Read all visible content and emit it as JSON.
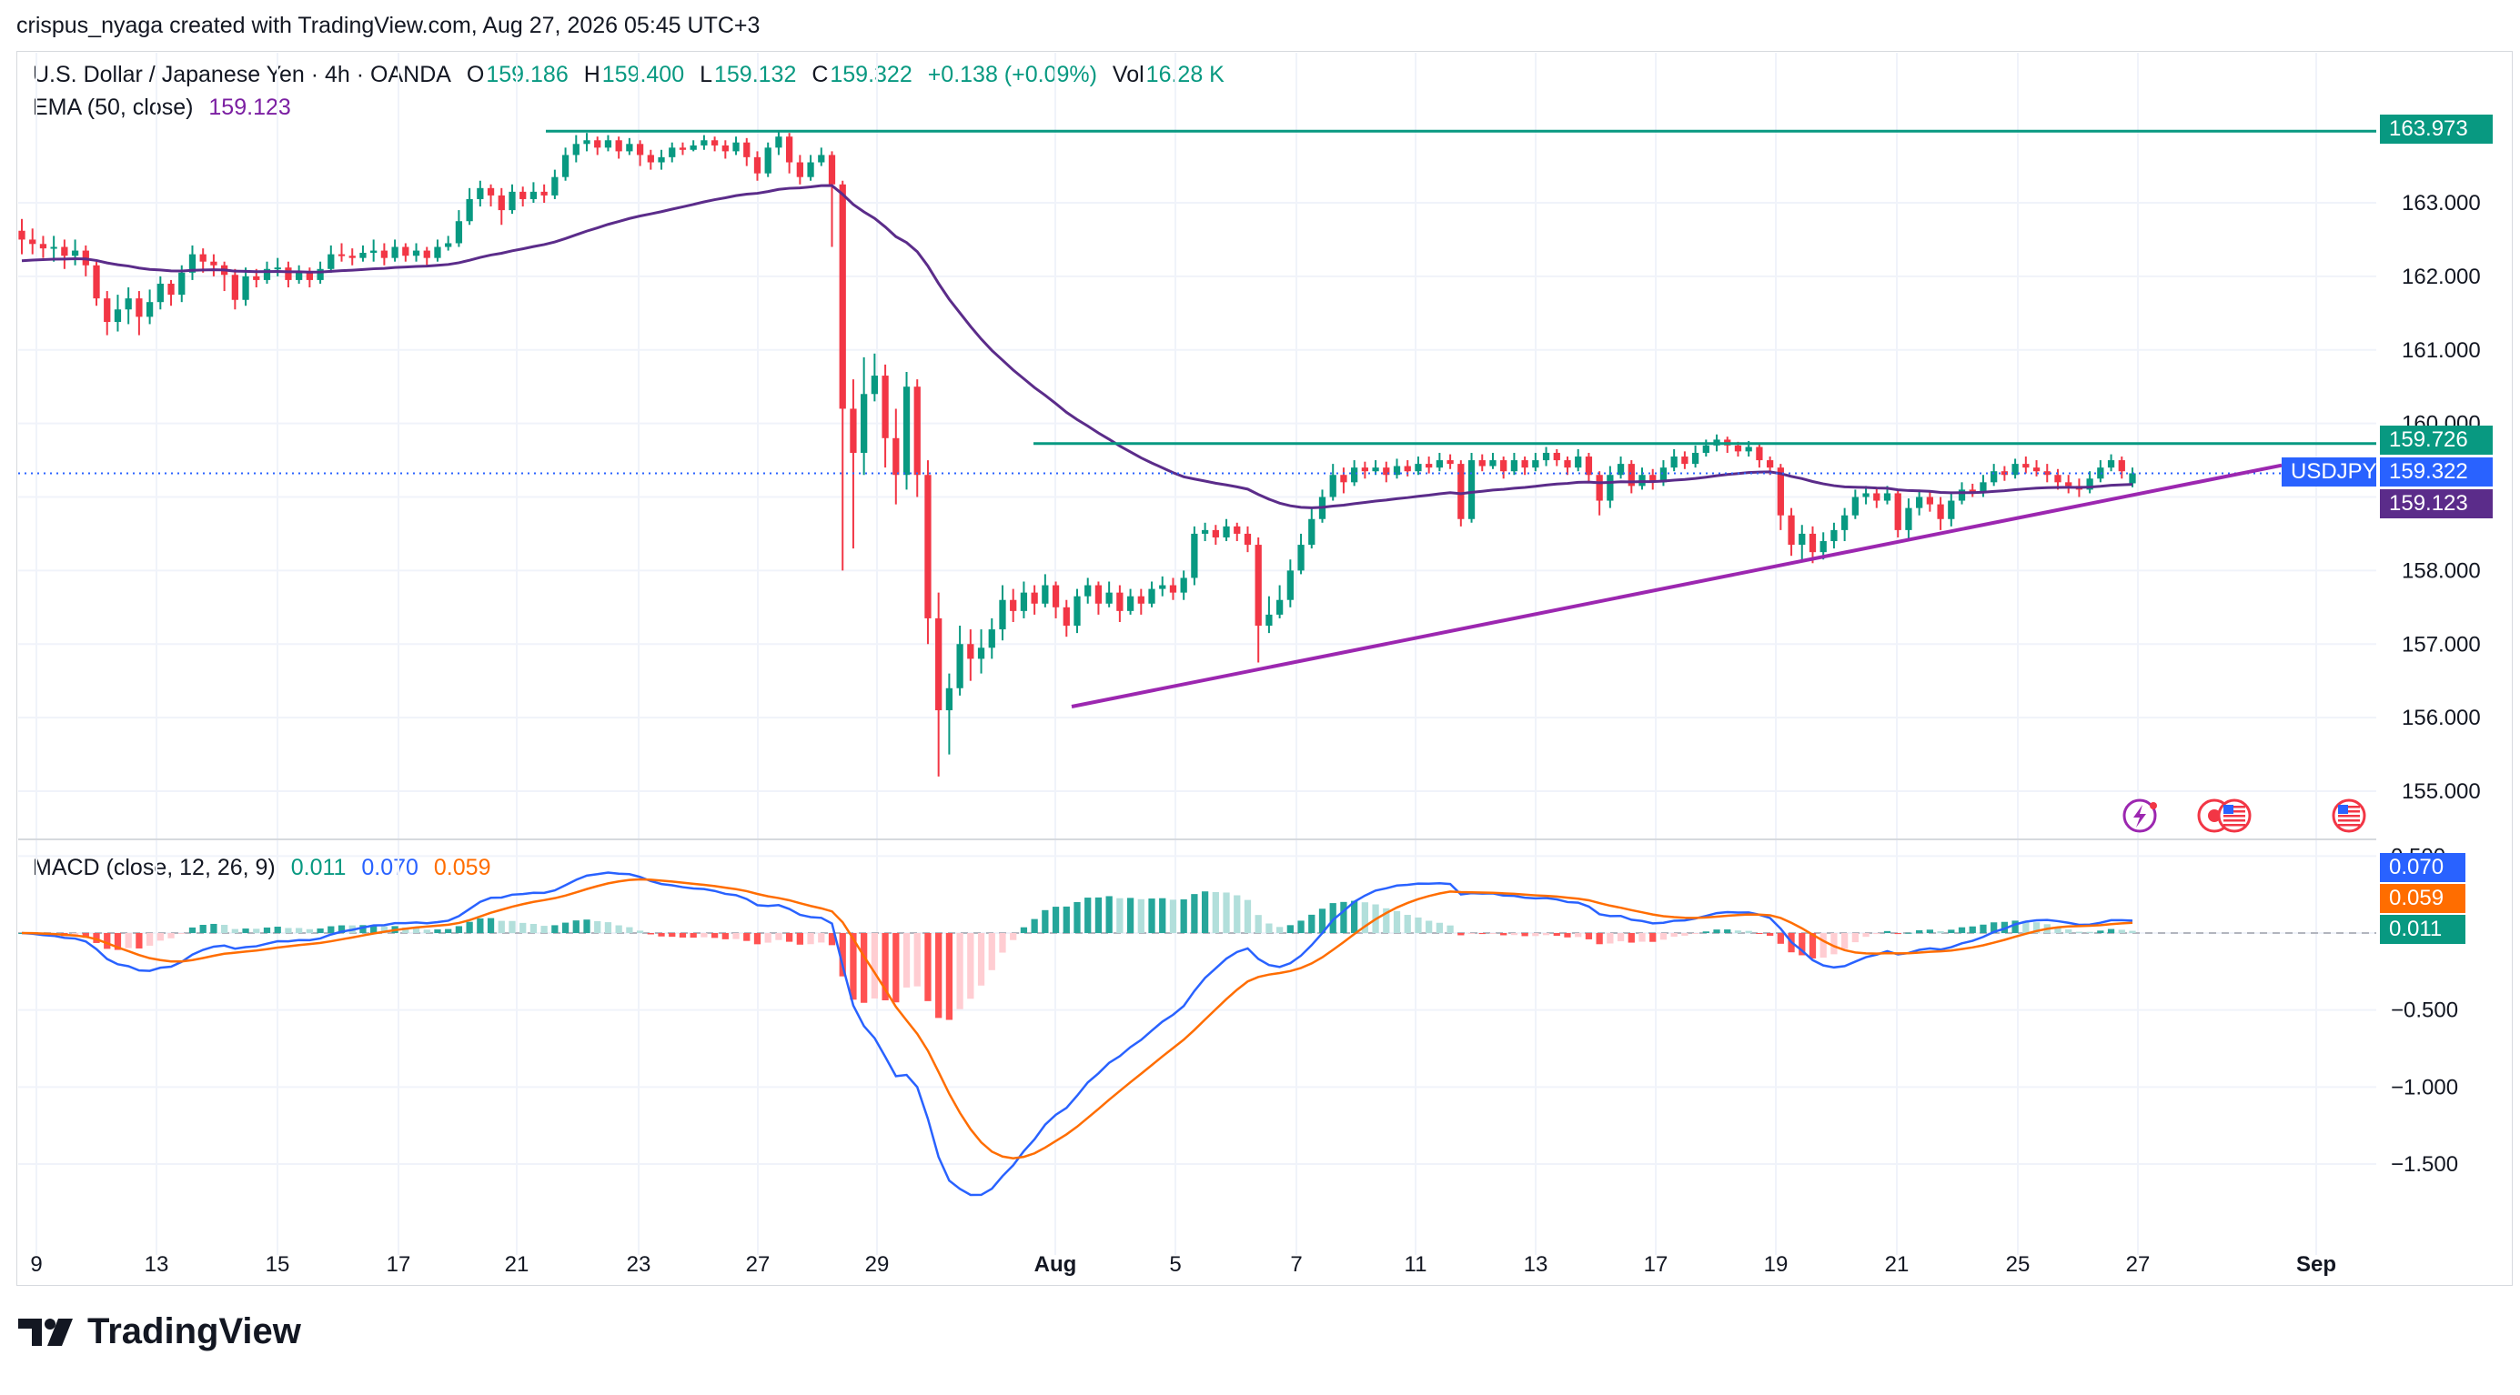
{
  "header": {
    "text": "crispus_nyaga created with TradingView.com, Aug 27, 2026 05:45 UTC+3"
  },
  "legend": {
    "symbol": "U.S. Dollar / Japanese Yen · 4h · OANDA",
    "open_label": "O",
    "open": "159.186",
    "high_label": "H",
    "high": "159.400",
    "low_label": "L",
    "low": "159.132",
    "close_label": "C",
    "close": "159.322",
    "change": "+0.138 (+0.09%)",
    "vol_label": "Vol",
    "vol": "16.28 K",
    "ema_label": "EMA (50, close)",
    "ema_value": "159.123"
  },
  "macd_legend": {
    "label": "MACD (close, 12, 26, 9)",
    "hist": "0.011",
    "macd": "0.070",
    "signal": "0.059"
  },
  "price_tags": {
    "resistance_top": "163.973",
    "resistance_mid": "159.726",
    "symbol_tag": "USDJPY",
    "last_price": "159.322",
    "ema": "159.123",
    "macd": "0.070",
    "signal": "0.059",
    "hist": "0.011"
  },
  "colors": {
    "up": "#089981",
    "down": "#f23645",
    "ema": "#5b2c8a",
    "trendline": "#9c27b0",
    "hline": "#089981",
    "macd": "#2962ff",
    "signal": "#ff6d00"
  },
  "icons": [
    "lightning-event-icon",
    "flag-event-icon",
    "us-flag-event-icon"
  ],
  "brand": {
    "name": "TradingView"
  },
  "chart_data": {
    "type": "candlestick",
    "title": "U.S. Dollar / Japanese Yen · 4h · OANDA",
    "price_axis": {
      "ticks": [
        "163.000",
        "162.000",
        "161.000",
        "160.000",
        "158.000",
        "157.000",
        "156.000",
        "155.000"
      ],
      "range": [
        154.6,
        164.8
      ]
    },
    "macd_axis": {
      "ticks": [
        "0.500",
        "−0.500",
        "−1.000",
        "−1.500"
      ],
      "range": [
        -1.75,
        0.62
      ]
    },
    "x_axis": {
      "ticks": [
        "9",
        "13",
        "15",
        "17",
        "21",
        "23",
        "27",
        "29",
        "Aug",
        "5",
        "7",
        "11",
        "13",
        "17",
        "19",
        "21",
        "25",
        "27",
        "Sep"
      ]
    },
    "horizontal_lines": [
      163.973,
      159.726
    ],
    "trendline": {
      "from": [
        "Aug 1",
        156.15
      ],
      "to": [
        "Aug 31",
        159.43
      ]
    },
    "last_price": 159.322,
    "ema_last": 159.123,
    "candles": [
      [
        162.62,
        162.5,
        162.78,
        162.3
      ],
      [
        162.5,
        162.44,
        162.65,
        162.3
      ],
      [
        162.44,
        162.38,
        162.55,
        162.25
      ],
      [
        162.38,
        162.4,
        162.55,
        162.2
      ],
      [
        162.4,
        162.28,
        162.5,
        162.1
      ],
      [
        162.28,
        162.35,
        162.5,
        162.15
      ],
      [
        162.35,
        162.15,
        162.42,
        162.0
      ],
      [
        162.15,
        161.7,
        162.2,
        161.6
      ],
      [
        161.7,
        161.38,
        161.8,
        161.2
      ],
      [
        161.38,
        161.55,
        161.75,
        161.25
      ],
      [
        161.55,
        161.7,
        161.85,
        161.35
      ],
      [
        161.7,
        161.45,
        161.8,
        161.2
      ],
      [
        161.45,
        161.65,
        161.82,
        161.35
      ],
      [
        161.65,
        161.9,
        162.0,
        161.55
      ],
      [
        161.9,
        161.75,
        161.95,
        161.6
      ],
      [
        161.75,
        162.05,
        162.15,
        161.65
      ],
      [
        162.05,
        162.3,
        162.42,
        161.95
      ],
      [
        162.3,
        162.2,
        162.38,
        162.05
      ],
      [
        162.2,
        162.15,
        162.3,
        162.0
      ],
      [
        162.15,
        162.02,
        162.2,
        161.8
      ],
      [
        162.02,
        161.68,
        162.1,
        161.55
      ],
      [
        161.68,
        162.0,
        162.12,
        161.6
      ],
      [
        162.0,
        161.95,
        162.1,
        161.85
      ],
      [
        161.95,
        162.1,
        162.2,
        161.9
      ],
      [
        162.1,
        162.12,
        162.25,
        162.0
      ],
      [
        162.12,
        161.95,
        162.2,
        161.85
      ],
      [
        161.95,
        162.05,
        162.15,
        161.9
      ],
      [
        162.05,
        161.95,
        162.12,
        161.85
      ],
      [
        161.95,
        162.1,
        162.2,
        161.9
      ],
      [
        162.1,
        162.3,
        162.42,
        162.05
      ],
      [
        162.3,
        162.28,
        162.45,
        162.2
      ],
      [
        162.28,
        162.25,
        162.38,
        162.15
      ],
      [
        162.25,
        162.32,
        162.42,
        162.2
      ],
      [
        162.32,
        162.35,
        162.5,
        162.2
      ],
      [
        162.35,
        162.25,
        162.45,
        162.15
      ],
      [
        162.25,
        162.4,
        162.5,
        162.2
      ],
      [
        162.4,
        162.28,
        162.45,
        162.2
      ],
      [
        162.28,
        162.35,
        162.45,
        162.2
      ],
      [
        162.35,
        162.25,
        162.4,
        162.15
      ],
      [
        162.25,
        162.4,
        162.5,
        162.2
      ],
      [
        162.4,
        162.45,
        162.55,
        162.35
      ],
      [
        162.45,
        162.75,
        162.9,
        162.4
      ],
      [
        162.75,
        163.05,
        163.2,
        162.7
      ],
      [
        163.05,
        163.2,
        163.3,
        162.95
      ],
      [
        163.2,
        163.1,
        163.25,
        162.95
      ],
      [
        163.1,
        162.9,
        163.2,
        162.7
      ],
      [
        162.9,
        163.15,
        163.25,
        162.85
      ],
      [
        163.15,
        163.05,
        163.22,
        162.95
      ],
      [
        163.05,
        163.15,
        163.28,
        163.0
      ],
      [
        163.15,
        163.1,
        163.25,
        163.0
      ],
      [
        163.1,
        163.35,
        163.45,
        163.05
      ],
      [
        163.35,
        163.65,
        163.75,
        163.3
      ],
      [
        163.65,
        163.8,
        163.92,
        163.55
      ],
      [
        163.8,
        163.85,
        163.95,
        163.7
      ],
      [
        163.85,
        163.75,
        163.9,
        163.65
      ],
      [
        163.75,
        163.85,
        163.92,
        163.7
      ],
      [
        163.85,
        163.7,
        163.9,
        163.6
      ],
      [
        163.7,
        163.8,
        163.88,
        163.65
      ],
      [
        163.8,
        163.65,
        163.85,
        163.5
      ],
      [
        163.65,
        163.55,
        163.72,
        163.45
      ],
      [
        163.55,
        163.62,
        163.72,
        163.45
      ],
      [
        163.62,
        163.75,
        163.82,
        163.55
      ],
      [
        163.75,
        163.72,
        163.82,
        163.65
      ],
      [
        163.72,
        163.78,
        163.85,
        163.7
      ],
      [
        163.78,
        163.85,
        163.92,
        163.72
      ],
      [
        163.85,
        163.78,
        163.9,
        163.7
      ],
      [
        163.78,
        163.7,
        163.85,
        163.6
      ],
      [
        163.7,
        163.82,
        163.9,
        163.65
      ],
      [
        163.82,
        163.62,
        163.88,
        163.5
      ],
      [
        163.62,
        163.4,
        163.7,
        163.3
      ],
      [
        163.4,
        163.75,
        163.82,
        163.35
      ],
      [
        163.75,
        163.9,
        163.96,
        163.65
      ],
      [
        163.9,
        163.55,
        163.95,
        163.4
      ],
      [
        163.55,
        163.35,
        163.65,
        163.25
      ],
      [
        163.35,
        163.55,
        163.65,
        163.3
      ],
      [
        163.55,
        163.65,
        163.75,
        163.5
      ],
      [
        163.65,
        163.25,
        163.7,
        162.4
      ],
      [
        163.25,
        160.2,
        163.3,
        158.0
      ],
      [
        160.2,
        159.6,
        160.6,
        158.3
      ],
      [
        159.6,
        160.4,
        160.9,
        159.3
      ],
      [
        160.4,
        160.65,
        160.95,
        160.3
      ],
      [
        160.65,
        159.8,
        160.8,
        159.4
      ],
      [
        159.8,
        159.3,
        160.2,
        158.9
      ],
      [
        159.3,
        160.5,
        160.7,
        159.1
      ],
      [
        160.5,
        159.3,
        160.6,
        159.0
      ],
      [
        159.3,
        157.35,
        159.5,
        157.0
      ],
      [
        157.35,
        156.1,
        157.7,
        155.2
      ],
      [
        156.1,
        156.4,
        156.6,
        155.5
      ],
      [
        156.4,
        157.0,
        157.25,
        156.3
      ],
      [
        157.0,
        156.8,
        157.2,
        156.5
      ],
      [
        156.8,
        156.95,
        157.2,
        156.6
      ],
      [
        156.95,
        157.2,
        157.35,
        156.8
      ],
      [
        157.2,
        157.6,
        157.8,
        157.05
      ],
      [
        157.6,
        157.45,
        157.75,
        157.3
      ],
      [
        157.45,
        157.7,
        157.85,
        157.35
      ],
      [
        157.7,
        157.55,
        157.8,
        157.4
      ],
      [
        157.55,
        157.8,
        157.95,
        157.5
      ],
      [
        157.8,
        157.5,
        157.85,
        157.35
      ],
      [
        157.5,
        157.25,
        157.6,
        157.1
      ],
      [
        157.25,
        157.65,
        157.75,
        157.15
      ],
      [
        157.65,
        157.8,
        157.9,
        157.55
      ],
      [
        157.8,
        157.55,
        157.85,
        157.4
      ],
      [
        157.55,
        157.7,
        157.85,
        157.5
      ],
      [
        157.7,
        157.45,
        157.8,
        157.3
      ],
      [
        157.45,
        157.65,
        157.75,
        157.4
      ],
      [
        157.65,
        157.55,
        157.75,
        157.4
      ],
      [
        157.55,
        157.75,
        157.85,
        157.5
      ],
      [
        157.75,
        157.8,
        157.92,
        157.65
      ],
      [
        157.8,
        157.7,
        157.9,
        157.6
      ],
      [
        157.7,
        157.9,
        158.0,
        157.6
      ],
      [
        157.9,
        158.5,
        158.6,
        157.8
      ],
      [
        158.5,
        158.55,
        158.65,
        158.4
      ],
      [
        158.55,
        158.45,
        158.62,
        158.35
      ],
      [
        158.45,
        158.6,
        158.7,
        158.4
      ],
      [
        158.6,
        158.5,
        158.65,
        158.4
      ],
      [
        158.5,
        158.35,
        158.6,
        158.25
      ],
      [
        158.35,
        157.25,
        158.45,
        156.75
      ],
      [
        157.25,
        157.4,
        157.65,
        157.15
      ],
      [
        157.4,
        157.6,
        157.8,
        157.35
      ],
      [
        157.6,
        158.0,
        158.15,
        157.5
      ],
      [
        158.0,
        158.35,
        158.5,
        157.95
      ],
      [
        158.35,
        158.7,
        158.85,
        158.3
      ],
      [
        158.7,
        159.0,
        159.1,
        158.65
      ],
      [
        159.0,
        159.3,
        159.45,
        158.95
      ],
      [
        159.3,
        159.2,
        159.4,
        159.05
      ],
      [
        159.2,
        159.4,
        159.5,
        159.15
      ],
      [
        159.4,
        159.35,
        159.48,
        159.25
      ],
      [
        159.35,
        159.4,
        159.5,
        159.3
      ],
      [
        159.4,
        159.3,
        159.48,
        159.2
      ],
      [
        159.3,
        159.42,
        159.52,
        159.25
      ],
      [
        159.42,
        159.35,
        159.5,
        159.28
      ],
      [
        159.35,
        159.45,
        159.55,
        159.3
      ],
      [
        159.45,
        159.4,
        159.55,
        159.32
      ],
      [
        159.4,
        159.5,
        159.6,
        159.35
      ],
      [
        159.5,
        159.45,
        159.58,
        159.38
      ],
      [
        159.45,
        158.7,
        159.5,
        158.6
      ],
      [
        158.7,
        159.5,
        159.6,
        158.65
      ],
      [
        159.5,
        159.42,
        159.58,
        159.35
      ],
      [
        159.42,
        159.5,
        159.6,
        159.38
      ],
      [
        159.5,
        159.35,
        159.55,
        159.25
      ],
      [
        159.35,
        159.5,
        159.6,
        159.3
      ],
      [
        159.5,
        159.4,
        159.55,
        159.3
      ],
      [
        159.4,
        159.5,
        159.6,
        159.35
      ],
      [
        159.5,
        159.6,
        159.68,
        159.42
      ],
      [
        159.6,
        159.5,
        159.65,
        159.42
      ],
      [
        159.5,
        159.4,
        159.55,
        159.3
      ],
      [
        159.4,
        159.55,
        159.65,
        159.35
      ],
      [
        159.55,
        159.3,
        159.6,
        159.2
      ],
      [
        159.3,
        158.95,
        159.35,
        158.75
      ],
      [
        158.95,
        159.3,
        159.42,
        158.85
      ],
      [
        159.3,
        159.45,
        159.55,
        159.25
      ],
      [
        159.45,
        159.15,
        159.5,
        159.05
      ],
      [
        159.15,
        159.3,
        159.4,
        159.1
      ],
      [
        159.3,
        159.2,
        159.38,
        159.1
      ],
      [
        159.2,
        159.4,
        159.5,
        159.15
      ],
      [
        159.4,
        159.55,
        159.65,
        159.35
      ],
      [
        159.55,
        159.45,
        159.62,
        159.38
      ],
      [
        159.45,
        159.6,
        159.7,
        159.4
      ],
      [
        159.6,
        159.7,
        159.78,
        159.55
      ],
      [
        159.7,
        159.78,
        159.85,
        159.62
      ],
      [
        159.78,
        159.7,
        159.82,
        159.6
      ],
      [
        159.7,
        159.62,
        159.75,
        159.55
      ],
      [
        159.62,
        159.68,
        159.76,
        159.55
      ],
      [
        159.68,
        159.5,
        159.72,
        159.4
      ],
      [
        159.5,
        159.4,
        159.55,
        159.3
      ],
      [
        159.4,
        158.75,
        159.45,
        158.55
      ],
      [
        158.75,
        158.35,
        158.85,
        158.2
      ],
      [
        158.35,
        158.5,
        158.62,
        158.15
      ],
      [
        158.5,
        158.25,
        158.6,
        158.1
      ],
      [
        158.25,
        158.4,
        158.52,
        158.15
      ],
      [
        158.4,
        158.55,
        158.65,
        158.3
      ],
      [
        158.55,
        158.75,
        158.85,
        158.4
      ],
      [
        158.75,
        159.0,
        159.1,
        158.7
      ],
      [
        159.0,
        159.05,
        159.15,
        158.9
      ],
      [
        159.05,
        158.95,
        159.12,
        158.85
      ],
      [
        158.95,
        159.05,
        159.15,
        158.9
      ],
      [
        159.05,
        158.55,
        159.1,
        158.45
      ],
      [
        158.55,
        158.85,
        158.98,
        158.4
      ],
      [
        158.85,
        159.0,
        159.1,
        158.75
      ],
      [
        159.0,
        158.9,
        159.08,
        158.8
      ],
      [
        158.9,
        158.7,
        159.0,
        158.55
      ],
      [
        158.7,
        158.95,
        159.05,
        158.6
      ],
      [
        158.95,
        159.1,
        159.2,
        158.9
      ],
      [
        159.1,
        159.05,
        159.18,
        159.0
      ],
      [
        159.05,
        159.2,
        159.3,
        159.0
      ],
      [
        159.2,
        159.35,
        159.45,
        159.15
      ],
      [
        159.35,
        159.3,
        159.42,
        159.22
      ],
      [
        159.3,
        159.45,
        159.52,
        159.25
      ],
      [
        159.45,
        159.4,
        159.55,
        159.32
      ],
      [
        159.4,
        159.35,
        159.5,
        159.28
      ],
      [
        159.35,
        159.3,
        159.45,
        159.2
      ],
      [
        159.3,
        159.2,
        159.38,
        159.1
      ],
      [
        159.2,
        159.15,
        159.3,
        159.05
      ],
      [
        159.15,
        159.1,
        159.25,
        159.0
      ],
      [
        159.1,
        159.25,
        159.35,
        159.05
      ],
      [
        159.25,
        159.4,
        159.5,
        159.2
      ],
      [
        159.4,
        159.5,
        159.58,
        159.35
      ],
      [
        159.5,
        159.35,
        159.55,
        159.25
      ],
      [
        159.186,
        159.322,
        159.4,
        159.132
      ]
    ]
  }
}
